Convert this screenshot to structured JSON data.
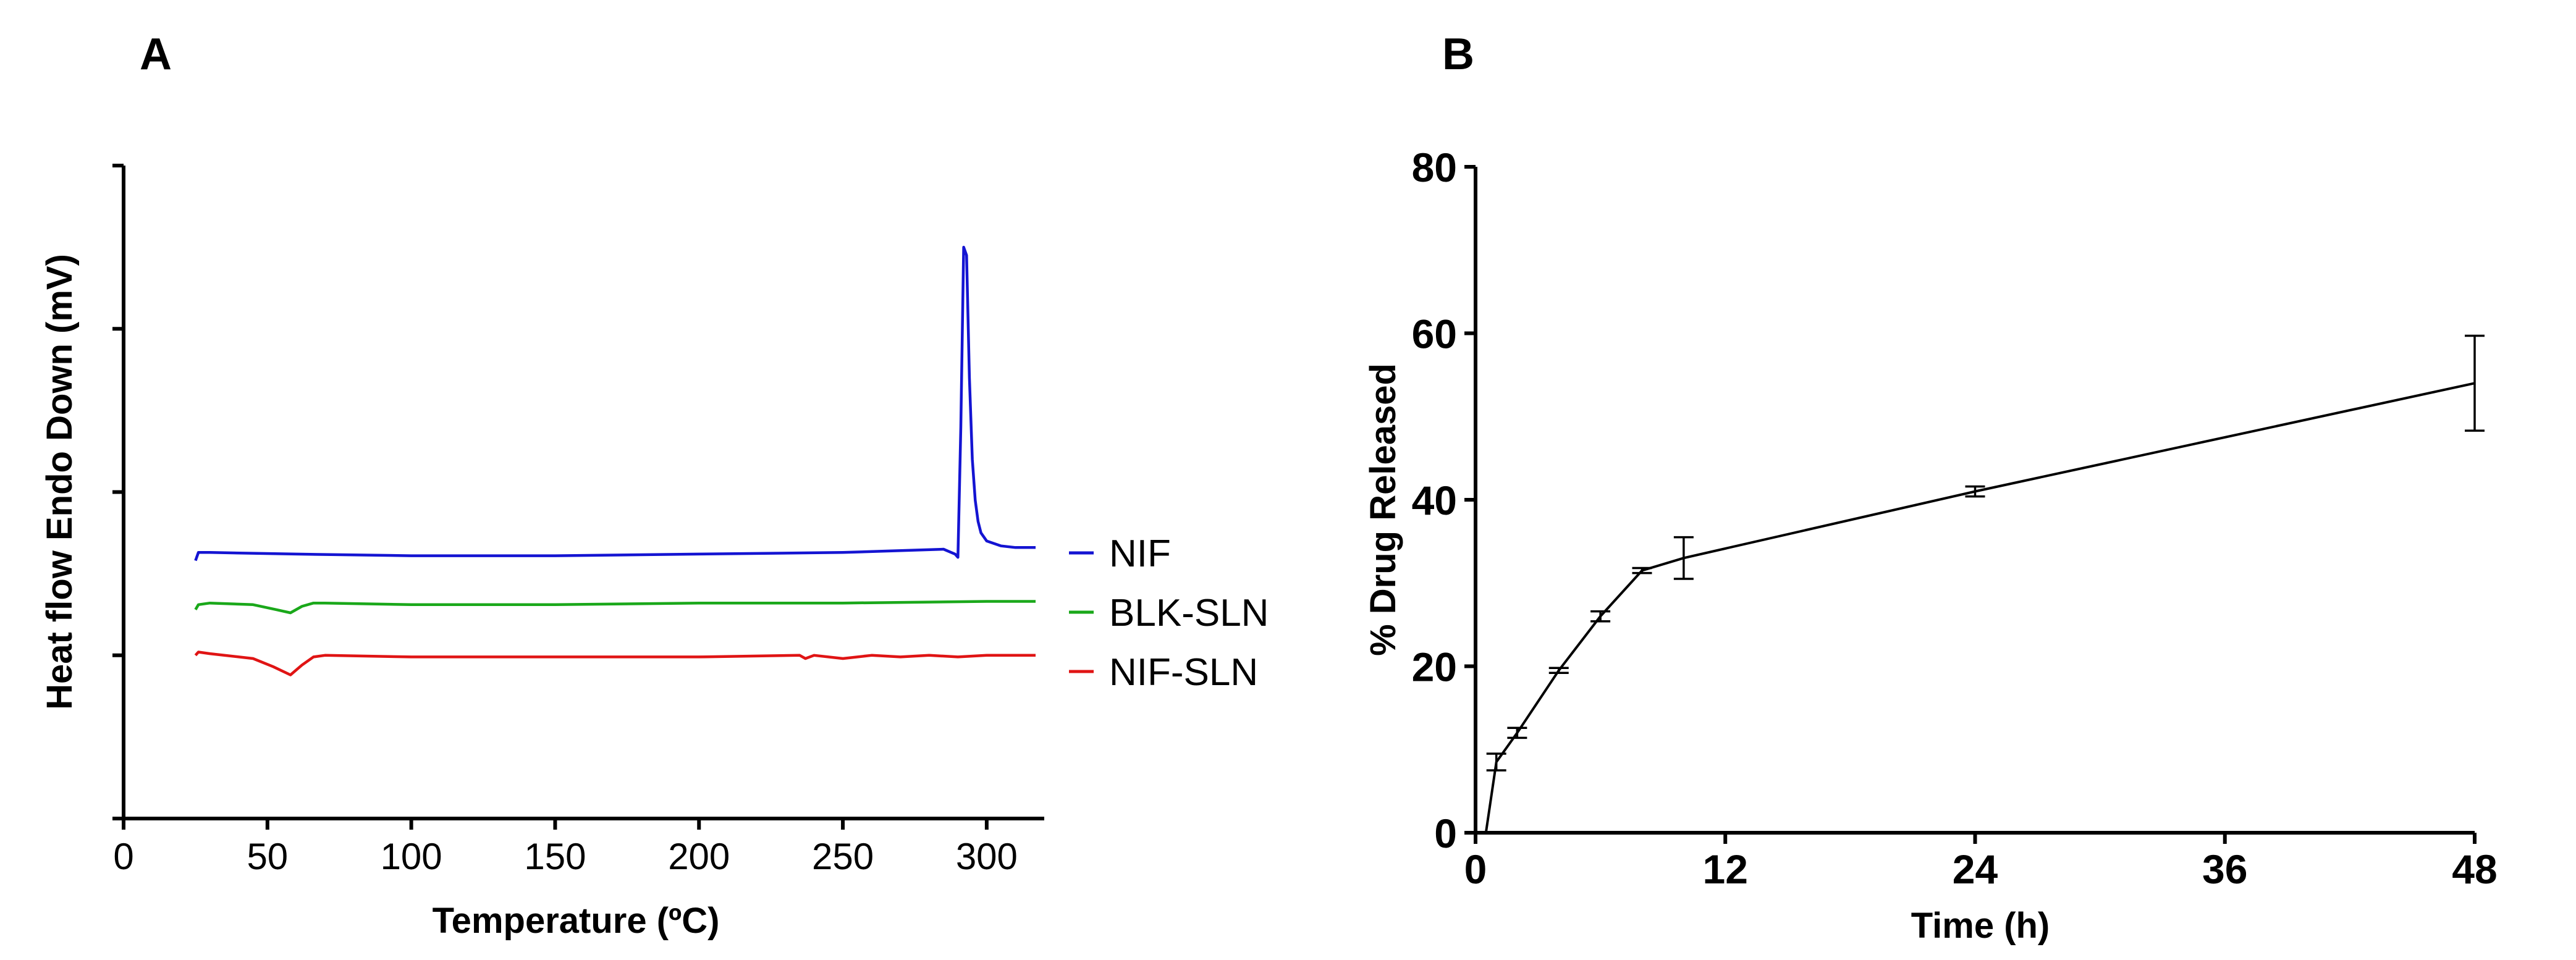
{
  "colors": {
    "axis": "#000000",
    "nif": "#1414d2",
    "blk_sln": "#1aa81a",
    "nif_sln": "#e01414",
    "release": "#000000"
  },
  "panel_a": {
    "label": "A"
  },
  "panel_b": {
    "label": "B"
  },
  "chart_data": [
    {
      "panel": "A",
      "type": "line",
      "xlabel": "Temperature (ºC)",
      "ylabel": "Heat flow Endo Down (mV)",
      "xlim": [
        0,
        320
      ],
      "xticks": [
        0,
        50,
        100,
        150,
        200,
        250,
        300
      ],
      "yticks_labeled": false,
      "ylim": [
        0,
        4
      ],
      "legend_position": "right",
      "series": [
        {
          "name": "NIF",
          "color": "#1414d2",
          "x": [
            25,
            26,
            30,
            60,
            100,
            150,
            200,
            250,
            285,
            289,
            290,
            291,
            292,
            293,
            294,
            295,
            296,
            297,
            298,
            300,
            305,
            310,
            317
          ],
          "y": [
            1.58,
            1.63,
            1.63,
            1.62,
            1.61,
            1.61,
            1.62,
            1.63,
            1.65,
            1.62,
            1.6,
            2.4,
            3.5,
            3.45,
            2.7,
            2.2,
            1.95,
            1.82,
            1.75,
            1.7,
            1.67,
            1.66,
            1.66
          ]
        },
        {
          "name": "BLK-SLN",
          "color": "#1aa81a",
          "x": [
            25,
            26,
            30,
            45,
            53,
            58,
            62,
            66,
            70,
            100,
            150,
            200,
            250,
            300,
            317
          ],
          "y": [
            1.28,
            1.31,
            1.32,
            1.31,
            1.28,
            1.26,
            1.3,
            1.32,
            1.32,
            1.31,
            1.31,
            1.32,
            1.32,
            1.33,
            1.33
          ]
        },
        {
          "name": "NIF-SLN",
          "color": "#e01414",
          "x": [
            25,
            26,
            30,
            45,
            52,
            58,
            62,
            66,
            70,
            100,
            150,
            200,
            235,
            237,
            240,
            250,
            260,
            270,
            280,
            290,
            300,
            317
          ],
          "y": [
            1.0,
            1.02,
            1.01,
            0.98,
            0.93,
            0.88,
            0.94,
            0.99,
            1.0,
            0.99,
            0.99,
            0.99,
            1.0,
            0.98,
            1.0,
            0.98,
            1.0,
            0.99,
            1.0,
            0.99,
            1.0,
            1.0
          ]
        }
      ]
    },
    {
      "panel": "B",
      "type": "line",
      "xlabel": "Time (h)",
      "ylabel": "% Drug Released",
      "xlim": [
        0,
        48
      ],
      "ylim": [
        0,
        80
      ],
      "xticks": [
        0,
        12,
        24,
        36,
        48
      ],
      "yticks": [
        0,
        20,
        40,
        60,
        80
      ],
      "series": [
        {
          "x": [
            0.5,
            1,
            2,
            4,
            6,
            8,
            10,
            24,
            48
          ],
          "y": [
            0,
            8.5,
            12,
            19.5,
            26,
            31.5,
            33,
            41,
            54
          ],
          "err": [
            0,
            1,
            0.6,
            0.3,
            0.6,
            0.3,
            2.5,
            0.6,
            5.7
          ]
        }
      ]
    }
  ]
}
